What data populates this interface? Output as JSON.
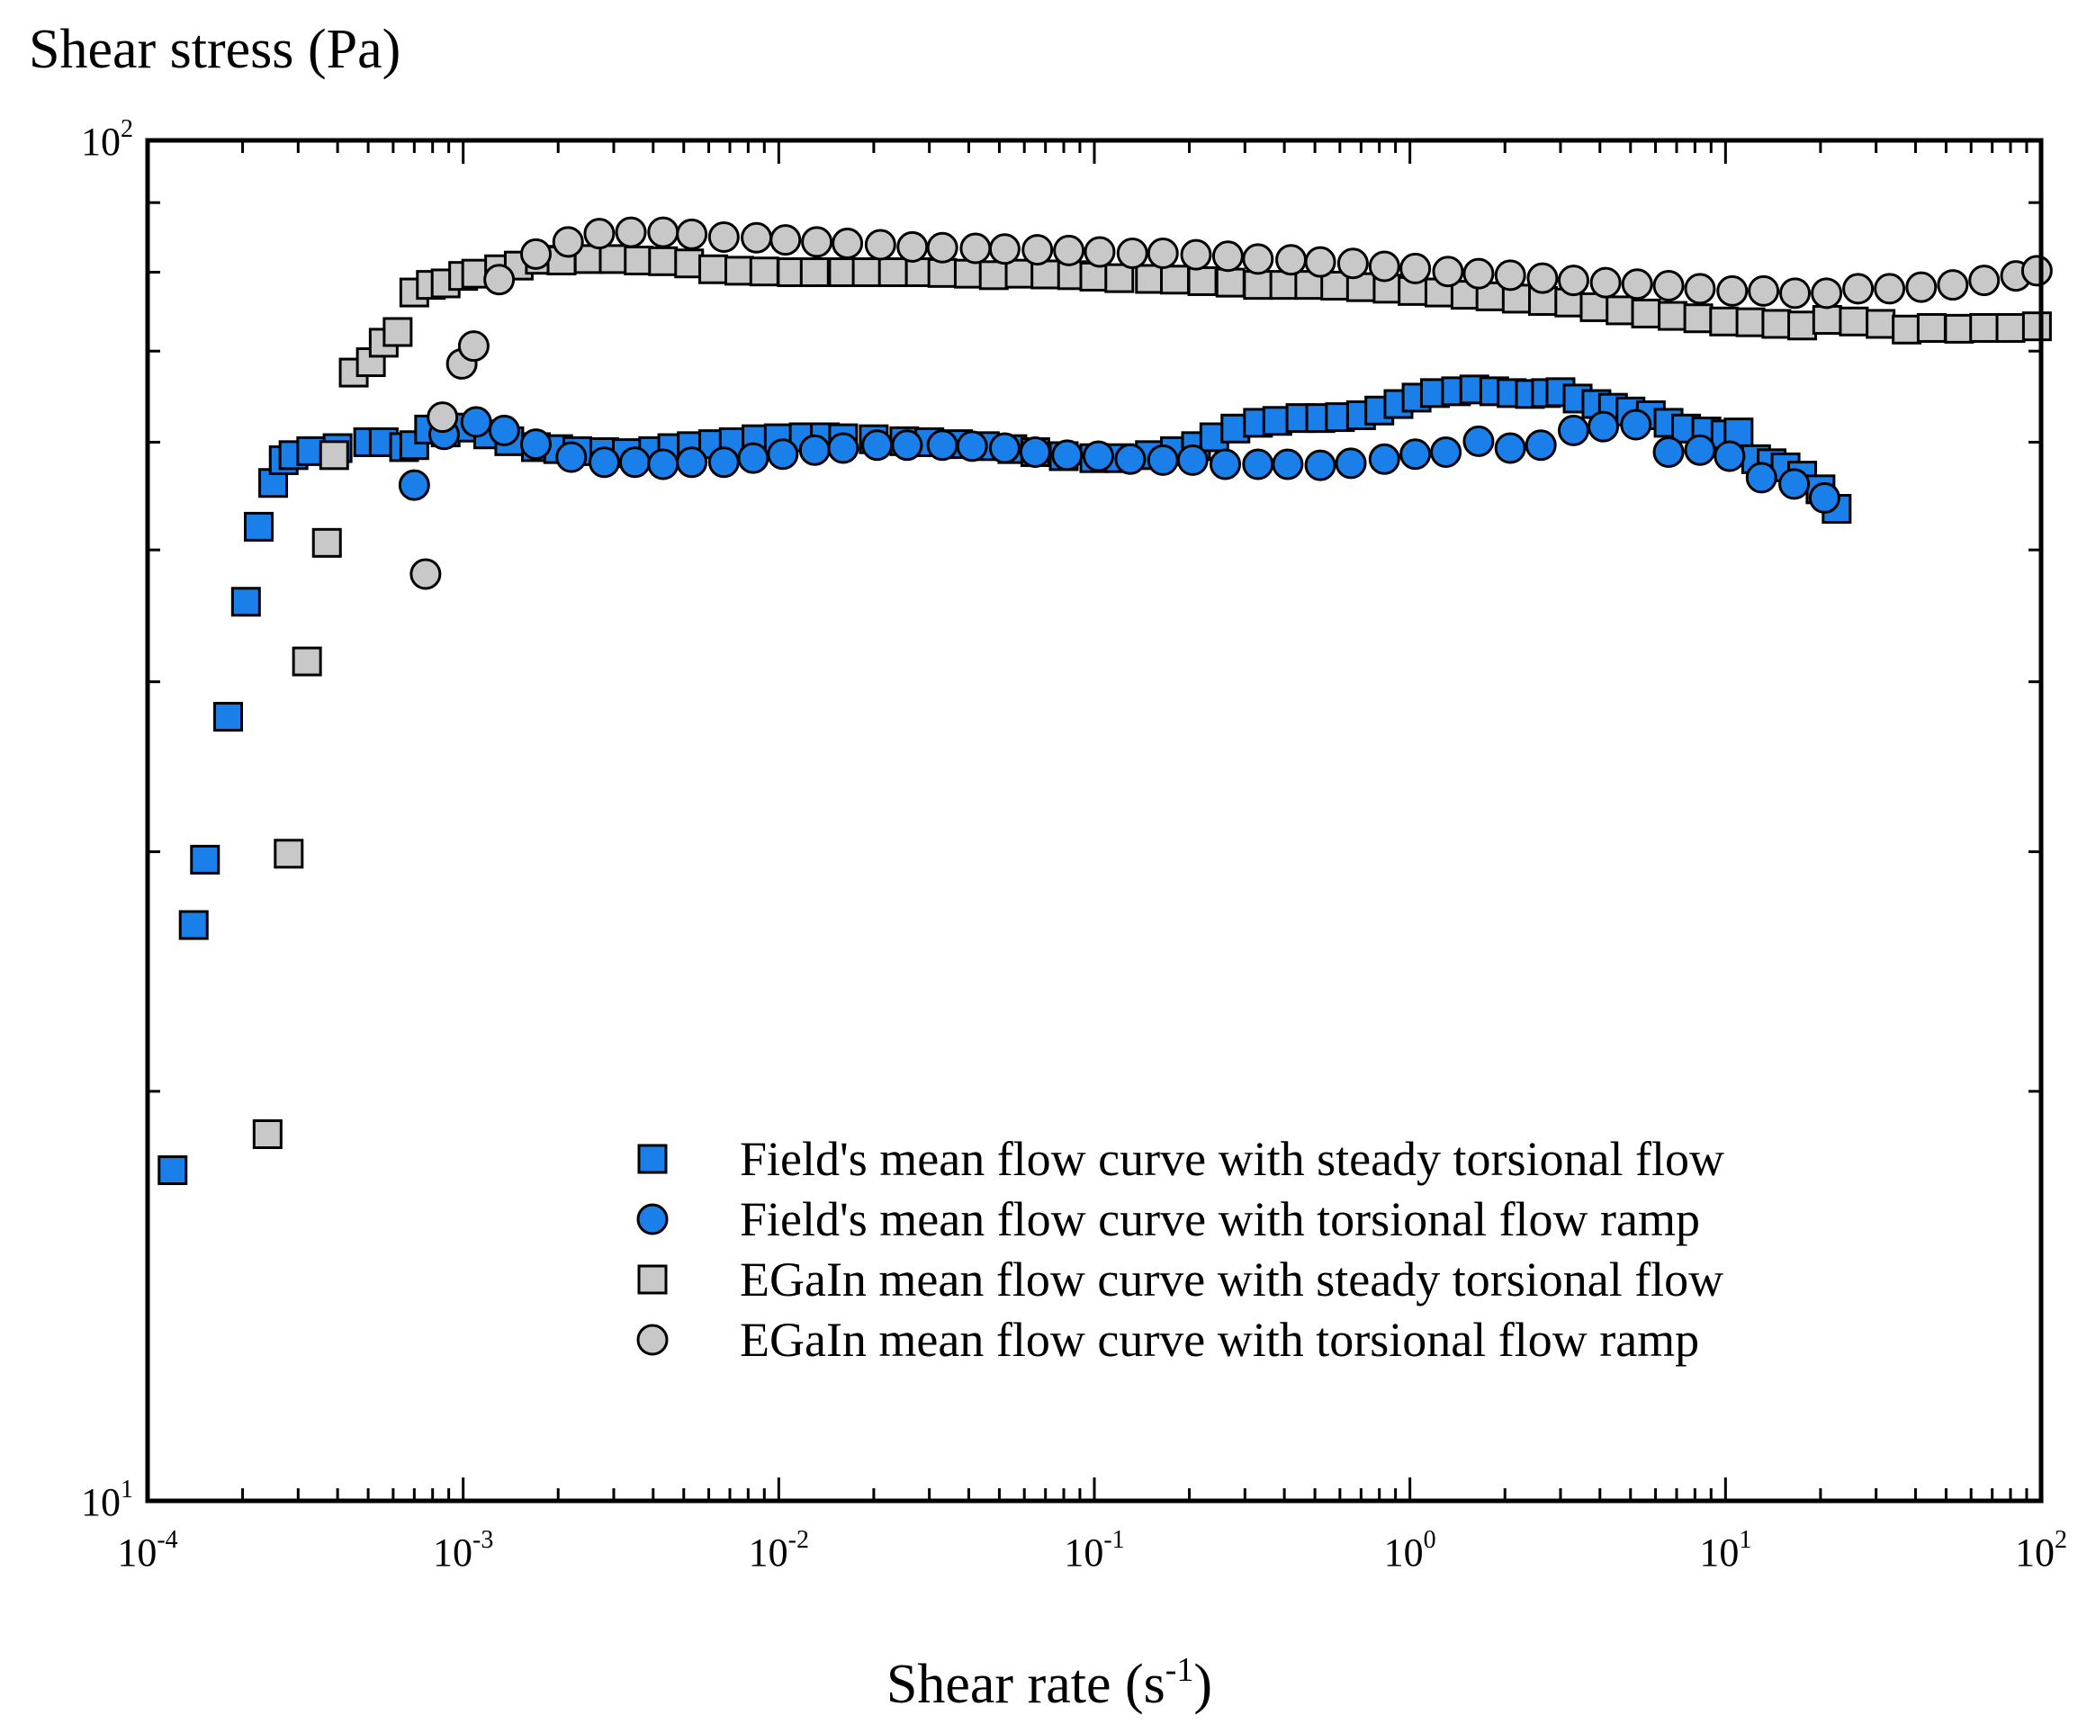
{
  "chart_data": {
    "type": "scatter",
    "xscale": "log",
    "yscale": "log",
    "xlim": [
      0.0001,
      100
    ],
    "ylim": [
      10,
      100
    ],
    "xlabel_main": "Shear rate (s",
    "xlabel_sup": "-1",
    "xlabel_close": ")",
    "ylabel": "Shear stress (Pa)",
    "x_ticks": [
      {
        "base": "10",
        "exp": "-4",
        "value": 0.0001
      },
      {
        "base": "10",
        "exp": "-3",
        "value": 0.001
      },
      {
        "base": "10",
        "exp": "-2",
        "value": 0.01
      },
      {
        "base": "10",
        "exp": "-1",
        "value": 0.1
      },
      {
        "base": "10",
        "exp": "0",
        "value": 1
      },
      {
        "base": "10",
        "exp": "1",
        "value": 10
      },
      {
        "base": "10",
        "exp": "2",
        "value": 100
      }
    ],
    "y_ticks": [
      {
        "base": "10",
        "exp": "1",
        "value": 10
      },
      {
        "base": "10",
        "exp": "2",
        "value": 100
      }
    ],
    "legend_position": "lower-right",
    "series": [
      {
        "name": "Field's mean flow curve with steady torsional flow",
        "marker": "square",
        "color": "#1a7fe8",
        "points": [
          [
            0.00012,
            17.5
          ],
          [
            0.00014,
            26.5
          ],
          [
            0.000152,
            29.6
          ],
          [
            0.00018,
            37.7
          ],
          [
            0.000205,
            45.8
          ],
          [
            0.000225,
            52.0
          ],
          [
            0.00025,
            56.0
          ],
          [
            0.00027,
            58.2
          ],
          [
            0.00029,
            58.7
          ],
          [
            0.00033,
            59.1
          ],
          [
            0.0004,
            59.4
          ],
          [
            0.0005,
            60.0
          ],
          [
            0.00056,
            60.0
          ],
          [
            0.00065,
            59.5
          ],
          [
            0.0007,
            59.7
          ],
          [
            0.00078,
            61.3
          ],
          [
            0.00088,
            61.0
          ],
          [
            0.001,
            61.5
          ],
          [
            0.0012,
            60.8
          ],
          [
            0.0014,
            60.1
          ],
          [
            0.0017,
            59.5
          ],
          [
            0.002,
            59.3
          ],
          [
            0.0023,
            59.1
          ],
          [
            0.0028,
            59.0
          ],
          [
            0.0033,
            58.9
          ],
          [
            0.004,
            59.1
          ],
          [
            0.0046,
            59.4
          ],
          [
            0.0053,
            59.6
          ],
          [
            0.0062,
            59.8
          ],
          [
            0.0072,
            60.0
          ],
          [
            0.0085,
            60.3
          ],
          [
            0.01,
            60.4
          ],
          [
            0.012,
            60.5
          ],
          [
            0.014,
            60.5
          ],
          [
            0.016,
            60.4
          ],
          [
            0.02,
            60.3
          ],
          [
            0.025,
            60.1
          ],
          [
            0.03,
            60.0
          ],
          [
            0.037,
            59.8
          ],
          [
            0.045,
            59.6
          ],
          [
            0.055,
            59.3
          ],
          [
            0.065,
            59.0
          ],
          [
            0.08,
            58.6
          ],
          [
            0.1,
            58.4
          ],
          [
            0.12,
            58.4
          ],
          [
            0.15,
            58.7
          ],
          [
            0.18,
            59.1
          ],
          [
            0.21,
            59.6
          ],
          [
            0.24,
            60.5
          ],
          [
            0.28,
            61.4
          ],
          [
            0.33,
            62.0
          ],
          [
            0.38,
            62.2
          ],
          [
            0.45,
            62.5
          ],
          [
            0.52,
            62.5
          ],
          [
            0.6,
            62.6
          ],
          [
            0.7,
            62.8
          ],
          [
            0.8,
            63.3
          ],
          [
            0.92,
            64.0
          ],
          [
            1.05,
            64.7
          ],
          [
            1.2,
            65.2
          ],
          [
            1.4,
            65.4
          ],
          [
            1.6,
            65.6
          ],
          [
            1.85,
            65.4
          ],
          [
            2.1,
            65.2
          ],
          [
            2.4,
            65.1
          ],
          [
            2.7,
            65.2
          ],
          [
            3.0,
            65.3
          ],
          [
            3.4,
            64.6
          ],
          [
            3.9,
            64.0
          ],
          [
            4.4,
            63.6
          ],
          [
            5.0,
            63.2
          ],
          [
            5.8,
            62.8
          ],
          [
            6.6,
            62.0
          ],
          [
            7.5,
            61.4
          ],
          [
            8.7,
            61.1
          ],
          [
            10.0,
            60.8
          ],
          [
            11.0,
            61.0
          ],
          [
            12.5,
            58.3
          ],
          [
            14.0,
            57.9
          ],
          [
            15.5,
            57.5
          ],
          [
            17.5,
            56.7
          ],
          [
            20.0,
            55.4
          ],
          [
            22.5,
            53.6
          ]
        ]
      },
      {
        "name": "Field's mean flow curve with torsional flow ramp",
        "marker": "circle",
        "color": "#1a7fe8",
        "points": [
          [
            0.0007,
            55.8
          ],
          [
            0.00087,
            60.8
          ],
          [
            0.0011,
            62.1
          ],
          [
            0.00135,
            61.2
          ],
          [
            0.0017,
            59.8
          ],
          [
            0.0022,
            58.5
          ],
          [
            0.0028,
            58.0
          ],
          [
            0.0035,
            58.0
          ],
          [
            0.0043,
            57.8
          ],
          [
            0.0053,
            58.0
          ],
          [
            0.0067,
            58.0
          ],
          [
            0.0083,
            58.4
          ],
          [
            0.0103,
            58.8
          ],
          [
            0.013,
            59.2
          ],
          [
            0.016,
            59.4
          ],
          [
            0.0205,
            59.7
          ],
          [
            0.0255,
            59.7
          ],
          [
            0.033,
            59.7
          ],
          [
            0.041,
            59.6
          ],
          [
            0.052,
            59.4
          ],
          [
            0.065,
            59.0
          ],
          [
            0.082,
            58.7
          ],
          [
            0.103,
            58.6
          ],
          [
            0.13,
            58.3
          ],
          [
            0.165,
            58.2
          ],
          [
            0.205,
            58.2
          ],
          [
            0.26,
            57.8
          ],
          [
            0.33,
            57.8
          ],
          [
            0.41,
            57.8
          ],
          [
            0.52,
            57.7
          ],
          [
            0.65,
            57.9
          ],
          [
            0.83,
            58.3
          ],
          [
            1.04,
            58.8
          ],
          [
            1.3,
            59.0
          ],
          [
            1.65,
            60.1
          ],
          [
            2.08,
            59.4
          ],
          [
            2.6,
            59.7
          ],
          [
            3.3,
            61.2
          ],
          [
            4.1,
            61.6
          ],
          [
            5.2,
            61.8
          ],
          [
            6.6,
            59.0
          ],
          [
            8.3,
            59.2
          ],
          [
            10.3,
            58.6
          ],
          [
            13.0,
            56.5
          ],
          [
            16.5,
            55.9
          ],
          [
            20.6,
            54.6
          ]
        ]
      },
      {
        "name": "EGaIn mean flow curve with steady torsional flow",
        "marker": "square",
        "color": "#c8c8c8",
        "points": [
          [
            0.00024,
            18.6
          ],
          [
            0.00028,
            29.9
          ],
          [
            0.00032,
            41.4
          ],
          [
            0.00037,
            50.6
          ],
          [
            0.00039,
            58.7
          ],
          [
            0.00045,
            67.5
          ],
          [
            0.00051,
            68.7
          ],
          [
            0.00056,
            71.0
          ],
          [
            0.00062,
            72.3
          ],
          [
            0.0007,
            77.3
          ],
          [
            0.00079,
            78.3
          ],
          [
            0.00088,
            78.5
          ],
          [
            0.001,
            79.5
          ],
          [
            0.0011,
            79.8
          ],
          [
            0.0013,
            80.4
          ],
          [
            0.0015,
            80.9
          ],
          [
            0.00175,
            81.7
          ],
          [
            0.00205,
            81.6
          ],
          [
            0.0025,
            81.8
          ],
          [
            0.003,
            81.8
          ],
          [
            0.0036,
            81.6
          ],
          [
            0.0043,
            81.5
          ],
          [
            0.0052,
            81.2
          ],
          [
            0.0062,
            80.4
          ],
          [
            0.0075,
            80.2
          ],
          [
            0.009,
            80.1
          ],
          [
            0.011,
            80.0
          ],
          [
            0.013,
            80.0
          ],
          [
            0.016,
            80.0
          ],
          [
            0.019,
            80.0
          ],
          [
            0.023,
            80.0
          ],
          [
            0.028,
            80.0
          ],
          [
            0.033,
            79.9
          ],
          [
            0.04,
            79.8
          ],
          [
            0.048,
            79.6
          ],
          [
            0.058,
            79.8
          ],
          [
            0.07,
            79.7
          ],
          [
            0.085,
            79.6
          ],
          [
            0.1,
            79.4
          ],
          [
            0.12,
            79.2
          ],
          [
            0.15,
            79.1
          ],
          [
            0.18,
            79.0
          ],
          [
            0.22,
            78.8
          ],
          [
            0.27,
            78.6
          ],
          [
            0.33,
            78.3
          ],
          [
            0.4,
            78.3
          ],
          [
            0.48,
            78.3
          ],
          [
            0.58,
            78.2
          ],
          [
            0.7,
            78.0
          ],
          [
            0.85,
            77.8
          ],
          [
            1.02,
            77.5
          ],
          [
            1.24,
            77.3
          ],
          [
            1.5,
            77.0
          ],
          [
            1.8,
            76.8
          ],
          [
            2.18,
            76.5
          ],
          [
            2.64,
            76.2
          ],
          [
            3.2,
            76.0
          ],
          [
            3.85,
            75.4
          ],
          [
            4.65,
            75.0
          ],
          [
            5.6,
            74.6
          ],
          [
            6.8,
            74.3
          ],
          [
            8.2,
            74.0
          ],
          [
            9.9,
            73.6
          ],
          [
            12.0,
            73.5
          ],
          [
            14.5,
            73.3
          ],
          [
            17.5,
            73.1
          ],
          [
            21.0,
            73.8
          ],
          [
            25.5,
            73.6
          ],
          [
            31.0,
            73.3
          ],
          [
            37.5,
            72.6
          ],
          [
            45.0,
            72.8
          ],
          [
            55.0,
            72.7
          ],
          [
            66.0,
            72.8
          ],
          [
            80.0,
            72.8
          ],
          [
            97.0,
            73.0
          ]
        ]
      },
      {
        "name": "EGaIn mean flow curve with torsional flow ramp",
        "marker": "circle",
        "color": "#c8c8c8",
        "points": [
          [
            0.00076,
            48.0
          ],
          [
            0.00086,
            62.6
          ],
          [
            0.00099,
            68.5
          ],
          [
            0.00108,
            70.6
          ],
          [
            0.0013,
            79.0
          ],
          [
            0.0017,
            82.5
          ],
          [
            0.00215,
            84.2
          ],
          [
            0.0027,
            85.4
          ],
          [
            0.0034,
            85.6
          ],
          [
            0.0043,
            85.6
          ],
          [
            0.0053,
            85.3
          ],
          [
            0.0067,
            84.9
          ],
          [
            0.0085,
            84.8
          ],
          [
            0.0105,
            84.5
          ],
          [
            0.0132,
            84.2
          ],
          [
            0.0165,
            84.0
          ],
          [
            0.021,
            83.8
          ],
          [
            0.0265,
            83.5
          ],
          [
            0.033,
            83.4
          ],
          [
            0.042,
            83.3
          ],
          [
            0.052,
            83.2
          ],
          [
            0.066,
            83.1
          ],
          [
            0.083,
            83.0
          ],
          [
            0.104,
            82.8
          ],
          [
            0.132,
            82.6
          ],
          [
            0.165,
            82.6
          ],
          [
            0.21,
            82.4
          ],
          [
            0.265,
            82.2
          ],
          [
            0.33,
            81.8
          ],
          [
            0.42,
            81.7
          ],
          [
            0.52,
            81.4
          ],
          [
            0.66,
            81.2
          ],
          [
            0.83,
            80.8
          ],
          [
            1.04,
            80.5
          ],
          [
            1.32,
            80.1
          ],
          [
            1.65,
            79.8
          ],
          [
            2.08,
            79.6
          ],
          [
            2.63,
            79.2
          ],
          [
            3.3,
            78.9
          ],
          [
            4.17,
            78.6
          ],
          [
            5.25,
            78.4
          ],
          [
            6.6,
            78.2
          ],
          [
            8.3,
            77.8
          ],
          [
            10.5,
            77.5
          ],
          [
            13.2,
            77.5
          ],
          [
            16.6,
            77.2
          ],
          [
            20.9,
            77.2
          ],
          [
            26.3,
            77.8
          ],
          [
            33.1,
            77.8
          ],
          [
            41.7,
            78.0
          ],
          [
            52.5,
            78.3
          ],
          [
            66.0,
            78.9
          ],
          [
            83.2,
            79.5
          ],
          [
            97.0,
            80.2
          ]
        ]
      }
    ]
  }
}
